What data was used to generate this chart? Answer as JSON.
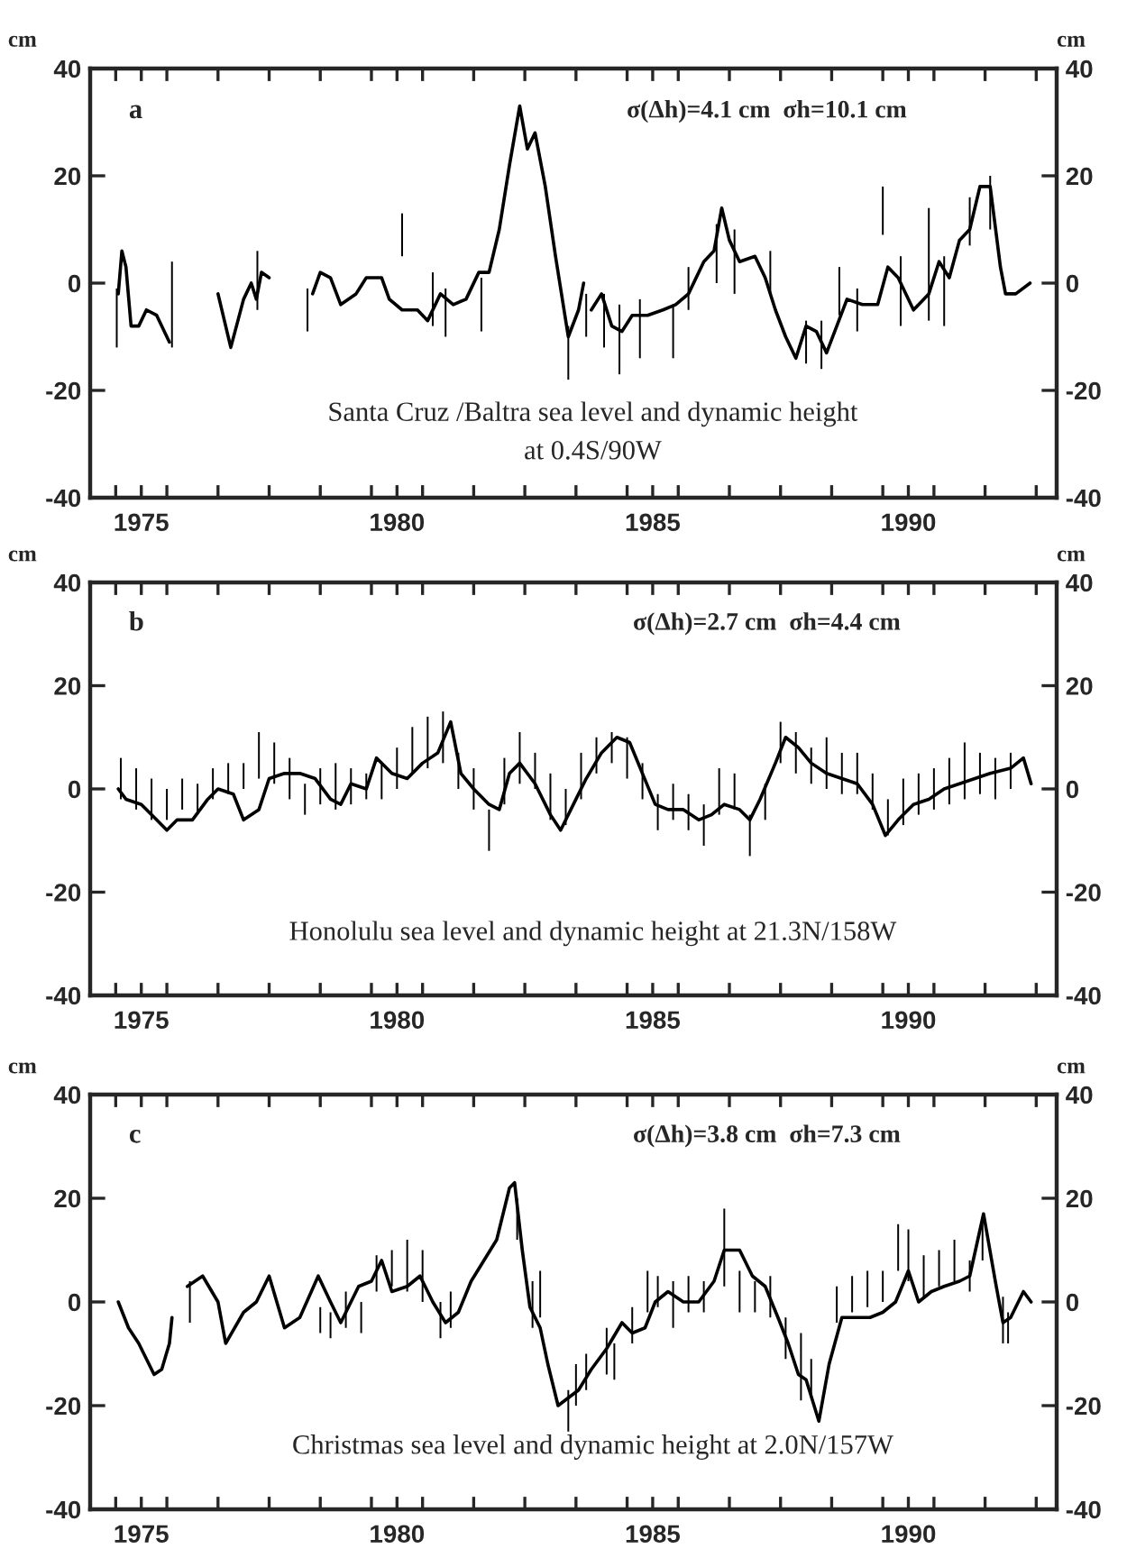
{
  "chart_data": [
    {
      "type": "line",
      "ylabel": "cm",
      "y2label": "cm",
      "xlim": [
        1974.5,
        1993.4
      ],
      "ylim": [
        -40,
        40
      ],
      "yticks": [
        -40,
        -20,
        0,
        20,
        40
      ],
      "y2lim": [
        -40,
        40
      ],
      "y2ticks": [
        -40,
        -20,
        0,
        20,
        40
      ],
      "xticks": [
        {
          "value": 1975.5,
          "label": "1975"
        },
        {
          "value": 1980.5,
          "label": "1980"
        },
        {
          "value": 1985.5,
          "label": "1985"
        },
        {
          "value": 1990.5,
          "label": "1990"
        },
        {
          "value": 1975,
          "label": null
        },
        {
          "value": 1976,
          "label": null
        },
        {
          "value": 1977,
          "label": null
        },
        {
          "value": 1978,
          "label": null
        },
        {
          "value": 1979,
          "label": null
        },
        {
          "value": 1980,
          "label": null
        },
        {
          "value": 1981,
          "label": null
        },
        {
          "value": 1982,
          "label": null
        },
        {
          "value": 1983,
          "label": null
        },
        {
          "value": 1984,
          "label": null
        },
        {
          "value": 1985,
          "label": null
        },
        {
          "value": 1986,
          "label": null
        },
        {
          "value": 1987,
          "label": null
        },
        {
          "value": 1988,
          "label": null
        },
        {
          "value": 1989,
          "label": null
        },
        {
          "value": 1990,
          "label": null
        },
        {
          "value": 1991,
          "label": null
        },
        {
          "value": 1992,
          "label": null
        },
        {
          "value": 1993,
          "label": null
        }
      ],
      "annotations": [
        "a",
        "σ(Δh)=4.1 cm  σh=10.1 cm",
        "Santa Cruz /Baltra sea level and dynamic height\nat 0.4S/90W"
      ],
      "series": [
        {
          "color": "#000000",
          "x": [
            1975.05,
            1975.12,
            1975.2,
            1975.3,
            1975.45,
            1975.6,
            1975.8,
            1976.05,
            1976.5,
            1977.0,
            1977.25,
            1977.5,
            1977.65,
            1977.75,
            1977.85,
            1978.0,
            1978.4,
            1978.85,
            1979.0,
            1979.2,
            1979.4,
            1979.7,
            1979.9,
            1980.2,
            1980.35,
            1980.6,
            1980.9,
            1981.1,
            1981.35,
            1981.6,
            1981.85,
            1982.1,
            1982.3,
            1982.5,
            1982.7,
            1982.9,
            1983.05,
            1983.2,
            1983.4,
            1983.6,
            1983.85,
            1984.05,
            1984.15,
            1984.22,
            1984.3,
            1984.5,
            1984.7,
            1984.9,
            1985.1,
            1985.4,
            1985.7,
            1985.95,
            1986.2,
            1986.5,
            1986.7,
            1986.85,
            1987.0,
            1987.2,
            1987.5,
            1987.7,
            1987.9,
            1988.1,
            1988.3,
            1988.5,
            1988.7,
            1988.9,
            1989.1,
            1989.3,
            1989.6,
            1989.9,
            1990.1,
            1990.3,
            1990.6,
            1990.9,
            1991.1,
            1991.3,
            1991.5,
            1991.7,
            1991.9,
            1992.1,
            1992.3,
            1992.4,
            1992.6,
            1992.88
          ],
          "values": [
            -2,
            6,
            3,
            -8,
            -8,
            -5,
            -6,
            -11,
            null,
            -2,
            -12,
            -3,
            0,
            -3,
            2,
            1,
            null,
            -2,
            2,
            1,
            -4,
            -2,
            1,
            1,
            -3,
            -5,
            -5,
            -7,
            -2,
            -4,
            -3,
            2,
            2,
            10,
            22,
            33,
            25,
            28,
            18,
            5,
            -10,
            -5,
            0,
            null,
            -5,
            -2,
            -8,
            -9,
            -6,
            -6,
            -5,
            -4,
            -2,
            4,
            6,
            14,
            8,
            4,
            5,
            1,
            -5,
            -10,
            -14,
            -8,
            -9,
            -13,
            -8,
            -3,
            -4,
            -4,
            3,
            1,
            -5,
            -2,
            4,
            1,
            8,
            10,
            18,
            18,
            3,
            -2,
            -2,
            0
          ]
        },
        {
          "type": "bar",
          "color": "#000000",
          "x": [
            1975.02,
            1976.1,
            1977.77,
            1978.75,
            1980.6,
            1981.2,
            1981.45,
            1982.15,
            1983.85,
            1984.2,
            1984.55,
            1984.85,
            1985.25,
            1985.9,
            1986.2,
            1986.75,
            1987.1,
            1987.8,
            1988.5,
            1988.8,
            1989.15,
            1989.5,
            1990.0,
            1990.35,
            1990.9,
            1991.2,
            1991.7,
            1992.1
          ],
          "base": [
            -12,
            -12,
            -5,
            -9,
            5,
            -8,
            -10,
            -9,
            -18,
            -10,
            -12,
            -17,
            -14,
            -14,
            -5,
            0,
            -2,
            -2,
            -15,
            -16,
            -6,
            -9,
            9,
            -8,
            -7,
            -8,
            7,
            10
          ],
          "values": [
            11,
            16,
            11,
            8,
            8,
            10,
            9,
            10,
            10,
            8,
            10,
            13,
            11,
            10,
            8,
            11,
            12,
            8,
            8,
            9,
            9,
            8,
            9,
            13,
            21,
            13,
            9,
            10
          ]
        }
      ]
    },
    {
      "type": "line",
      "ylabel": "cm",
      "y2label": "cm",
      "xlim": [
        1974.5,
        1993.4
      ],
      "ylim": [
        -40,
        40
      ],
      "yticks": [
        -40,
        -20,
        0,
        20,
        40
      ],
      "y2lim": [
        -40,
        40
      ],
      "y2ticks": [
        -40,
        -20,
        0,
        20,
        40
      ],
      "xticks": [
        {
          "value": 1975.5,
          "label": "1975"
        },
        {
          "value": 1980.5,
          "label": "1980"
        },
        {
          "value": 1985.5,
          "label": "1985"
        },
        {
          "value": 1990.5,
          "label": "1990"
        },
        {
          "value": 1975,
          "label": null
        },
        {
          "value": 1976,
          "label": null
        },
        {
          "value": 1977,
          "label": null
        },
        {
          "value": 1978,
          "label": null
        },
        {
          "value": 1979,
          "label": null
        },
        {
          "value": 1980,
          "label": null
        },
        {
          "value": 1981,
          "label": null
        },
        {
          "value": 1982,
          "label": null
        },
        {
          "value": 1983,
          "label": null
        },
        {
          "value": 1984,
          "label": null
        },
        {
          "value": 1985,
          "label": null
        },
        {
          "value": 1986,
          "label": null
        },
        {
          "value": 1987,
          "label": null
        },
        {
          "value": 1988,
          "label": null
        },
        {
          "value": 1989,
          "label": null
        },
        {
          "value": 1990,
          "label": null
        },
        {
          "value": 1991,
          "label": null
        },
        {
          "value": 1992,
          "label": null
        },
        {
          "value": 1993,
          "label": null
        }
      ],
      "annotations": [
        "b",
        "σ(Δh)=2.7 cm  σh=4.4 cm",
        "Honolulu sea level and dynamic height at 21.3N/158W"
      ],
      "series": [
        {
          "color": "#000000",
          "x": [
            1975.05,
            1975.2,
            1975.5,
            1975.8,
            1976.0,
            1976.2,
            1976.5,
            1976.8,
            1977.0,
            1977.3,
            1977.5,
            1977.8,
            1978.0,
            1978.3,
            1978.6,
            1978.9,
            1979.2,
            1979.4,
            1979.6,
            1979.9,
            1980.1,
            1980.4,
            1980.7,
            1981.0,
            1981.3,
            1981.55,
            1981.75,
            1982.0,
            1982.3,
            1982.5,
            1982.7,
            1982.9,
            1983.2,
            1983.5,
            1983.7,
            1983.95,
            1984.2,
            1984.5,
            1984.8,
            1985.05,
            1985.3,
            1985.55,
            1985.8,
            1986.1,
            1986.4,
            1986.65,
            1986.9,
            1987.2,
            1987.4,
            1987.6,
            1987.9,
            1988.1,
            1988.35,
            1988.6,
            1988.9,
            1989.2,
            1989.5,
            1989.8,
            1990.05,
            1990.3,
            1990.6,
            1990.9,
            1991.2,
            1991.5,
            1991.8,
            1992.1,
            1992.5,
            1992.75,
            1992.9
          ],
          "values": [
            0,
            -2,
            -3,
            -6,
            -8,
            -6,
            -6,
            -2,
            0,
            -1,
            -6,
            -4,
            2,
            3,
            3,
            2,
            -2,
            -3,
            1,
            0,
            6,
            3,
            2,
            5,
            7,
            13,
            3,
            0,
            -3,
            -4,
            3,
            5,
            1,
            -5,
            -8,
            -3,
            2,
            7,
            10,
            9,
            3,
            -3,
            -4,
            -4,
            -6,
            -5,
            -3,
            -4,
            -6,
            -2,
            5,
            10,
            8,
            5,
            3,
            2,
            1,
            -3,
            -9,
            -6,
            -3,
            -2,
            0,
            1,
            2,
            3,
            4,
            6,
            1
          ]
        },
        {
          "type": "bar",
          "color": "#000000",
          "x": [
            1975.1,
            1975.4,
            1975.7,
            1976.0,
            1976.3,
            1976.6,
            1976.9,
            1977.2,
            1977.5,
            1977.8,
            1978.1,
            1978.4,
            1978.7,
            1979.0,
            1979.3,
            1979.6,
            1979.9,
            1980.2,
            1980.5,
            1980.8,
            1981.1,
            1981.4,
            1981.7,
            1982.0,
            1982.3,
            1982.6,
            1982.9,
            1983.2,
            1983.5,
            1983.8,
            1984.1,
            1984.4,
            1984.7,
            1985.0,
            1985.3,
            1985.6,
            1985.9,
            1986.2,
            1986.5,
            1986.8,
            1987.1,
            1987.4,
            1987.7,
            1988.0,
            1988.3,
            1988.6,
            1988.9,
            1989.2,
            1989.5,
            1989.8,
            1990.1,
            1990.4,
            1990.7,
            1991.0,
            1991.3,
            1991.6,
            1991.9,
            1992.2,
            1992.5
          ],
          "base": [
            -2,
            -4,
            -6,
            -6,
            -4,
            -5,
            -2,
            -1,
            0,
            2,
            1,
            -2,
            -5,
            -3,
            -4,
            -3,
            -2,
            -2,
            0,
            3,
            4,
            5,
            0,
            -4,
            -12,
            -3,
            1,
            0,
            -6,
            -7,
            -2,
            3,
            5,
            2,
            -2,
            -8,
            -6,
            -8,
            -11,
            -5,
            -4,
            -13,
            -6,
            5,
            3,
            1,
            0,
            -1,
            -1,
            -4,
            -9,
            -7,
            -5,
            -4,
            -3,
            -2,
            -1,
            -2,
            0
          ],
          "values": [
            8,
            8,
            8,
            6,
            6,
            6,
            6,
            6,
            5,
            9,
            8,
            8,
            6,
            7,
            9,
            7,
            5,
            7,
            8,
            9,
            10,
            10,
            7,
            8,
            8,
            9,
            10,
            7,
            9,
            7,
            9,
            7,
            6,
            8,
            7,
            7,
            7,
            7,
            8,
            9,
            7,
            8,
            7,
            8,
            8,
            7,
            10,
            8,
            8,
            7,
            7,
            9,
            8,
            8,
            9,
            11,
            8,
            8,
            7
          ]
        }
      ]
    },
    {
      "type": "line",
      "ylabel": "cm",
      "y2label": "cm",
      "xlim": [
        1974.5,
        1993.4
      ],
      "ylim": [
        -40,
        40
      ],
      "yticks": [
        -40,
        -20,
        0,
        20,
        40
      ],
      "y2lim": [
        -40,
        40
      ],
      "y2ticks": [
        -40,
        -20,
        0,
        20,
        40
      ],
      "xticks": [
        {
          "value": 1975.5,
          "label": "1975"
        },
        {
          "value": 1980.5,
          "label": "1980"
        },
        {
          "value": 1985.5,
          "label": "1985"
        },
        {
          "value": 1990.5,
          "label": "1990"
        },
        {
          "value": 1975,
          "label": null
        },
        {
          "value": 1976,
          "label": null
        },
        {
          "value": 1977,
          "label": null
        },
        {
          "value": 1978,
          "label": null
        },
        {
          "value": 1979,
          "label": null
        },
        {
          "value": 1980,
          "label": null
        },
        {
          "value": 1981,
          "label": null
        },
        {
          "value": 1982,
          "label": null
        },
        {
          "value": 1983,
          "label": null
        },
        {
          "value": 1984,
          "label": null
        },
        {
          "value": 1985,
          "label": null
        },
        {
          "value": 1986,
          "label": null
        },
        {
          "value": 1987,
          "label": null
        },
        {
          "value": 1988,
          "label": null
        },
        {
          "value": 1989,
          "label": null
        },
        {
          "value": 1990,
          "label": null
        },
        {
          "value": 1991,
          "label": null
        },
        {
          "value": 1992,
          "label": null
        },
        {
          "value": 1993,
          "label": null
        }
      ],
      "annotations": [
        "c",
        "σ(Δh)=3.8 cm  σh=7.3 cm",
        "Christmas sea level and dynamic height at 2.0N/157W"
      ],
      "series": [
        {
          "color": "#000000",
          "x": [
            1975.05,
            1975.25,
            1975.45,
            1975.65,
            1975.75,
            1975.9,
            1976.05,
            1976.1,
            1976.25,
            1976.4,
            1976.7,
            1977.0,
            1977.15,
            1977.5,
            1977.75,
            1978.0,
            1978.3,
            1978.6,
            1978.96,
            1979.2,
            1979.4,
            1979.75,
            1980.0,
            1980.2,
            1980.4,
            1980.7,
            1980.95,
            1981.2,
            1981.45,
            1981.7,
            1981.95,
            1982.2,
            1982.45,
            1982.7,
            1982.8,
            1982.95,
            1983.1,
            1983.3,
            1983.45,
            1983.65,
            1984.05,
            1984.3,
            1984.6,
            1984.9,
            1985.1,
            1985.35,
            1985.55,
            1985.8,
            1986.1,
            1986.4,
            1986.7,
            1986.9,
            1987.2,
            1987.45,
            1987.7,
            1987.95,
            1988.15,
            1988.35,
            1988.5,
            1988.75,
            1988.95,
            1989.2,
            1989.5,
            1989.75,
            1990.0,
            1990.25,
            1990.5,
            1990.7,
            1990.95,
            1991.2,
            1991.5,
            1991.7,
            1991.97,
            1992.2,
            1992.35,
            1992.5,
            1992.75,
            1992.9
          ],
          "values": [
            0,
            -5,
            -8,
            -12,
            -14,
            -13,
            -8,
            -3,
            null,
            3,
            5,
            0,
            -8,
            -2,
            0,
            5,
            -5,
            -3,
            5,
            0,
            -4,
            3,
            4,
            8,
            2,
            3,
            5,
            0,
            -4,
            -2,
            4,
            8,
            12,
            22,
            23,
            10,
            -1,
            -5,
            -12,
            -20,
            -17,
            -13,
            -9,
            -4,
            -6,
            -5,
            0,
            2,
            0,
            0,
            4,
            10,
            10,
            5,
            3,
            -3,
            -8,
            -14,
            -15,
            -23,
            -12,
            -3,
            -3,
            -3,
            -2,
            0,
            6,
            0,
            2,
            3,
            4,
            5,
            17,
            4,
            -4,
            -3,
            2,
            0
          ]
        },
        {
          "type": "bar",
          "color": "#000000",
          "x": [
            1976.45,
            1979.0,
            1979.2,
            1979.5,
            1979.8,
            1980.1,
            1980.4,
            1980.7,
            1981.0,
            1981.35,
            1981.55,
            1982.85,
            1983.15,
            1983.3,
            1983.85,
            1984.0,
            1984.2,
            1984.6,
            1984.75,
            1985.1,
            1985.4,
            1985.6,
            1985.9,
            1986.2,
            1986.5,
            1986.9,
            1987.2,
            1987.5,
            1987.8,
            1988.1,
            1988.4,
            1988.6,
            1989.1,
            1989.4,
            1989.7,
            1990.0,
            1990.3,
            1990.5,
            1990.8,
            1991.1,
            1991.4,
            1991.7,
            1991.95,
            1992.35,
            1992.45
          ],
          "base": [
            -4,
            -6,
            -7,
            -5,
            -6,
            2,
            3,
            2,
            0,
            -7,
            -5,
            12,
            -5,
            -3,
            -25,
            -20,
            -17,
            -14,
            -15,
            -8,
            -2,
            -1,
            -5,
            -2,
            -2,
            3,
            -2,
            -2,
            -3,
            -11,
            -19,
            -18,
            -4,
            -2,
            -1,
            0,
            6,
            4,
            1,
            3,
            4,
            2,
            8,
            -8,
            -8
          ],
          "values": [
            8,
            5,
            5,
            7,
            6,
            7,
            7,
            10,
            10,
            7,
            7,
            8,
            9,
            9,
            8,
            8,
            7,
            9,
            7,
            7,
            8,
            6,
            9,
            7,
            6,
            15,
            8,
            6,
            8,
            8,
            13,
            7,
            7,
            7,
            7,
            6,
            9,
            10,
            8,
            7,
            8,
            6,
            8,
            9,
            6
          ]
        }
      ]
    }
  ]
}
